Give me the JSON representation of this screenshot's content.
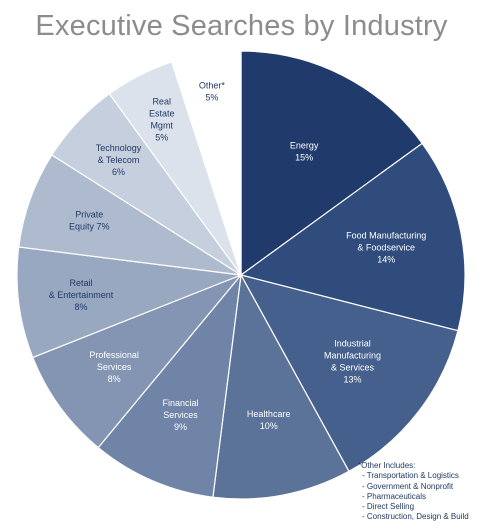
{
  "chart_data": {
    "type": "pie",
    "title": "Executive Searches by Industry",
    "slices": [
      {
        "label": [
          "Energy"
        ],
        "pct_label": "15%",
        "value": 15,
        "color": "#1f3a6b",
        "text_color": "#ffffff"
      },
      {
        "label": [
          "Food Manufacturing",
          "& Foodservice"
        ],
        "pct_label": "14%",
        "value": 14,
        "color": "#2f4c7c",
        "text_color": "#ffffff"
      },
      {
        "label": [
          "Industrial",
          "Manufacturing",
          "& Services"
        ],
        "pct_label": "13%",
        "value": 13,
        "color": "#45608c",
        "text_color": "#ffffff"
      },
      {
        "label": [
          "Healthcare"
        ],
        "pct_label": "10%",
        "value": 10,
        "color": "#5c7399",
        "text_color": "#ffffff"
      },
      {
        "label": [
          "Financial",
          "Services"
        ],
        "pct_label": "9%",
        "value": 9,
        "color": "#6f84a6",
        "text_color": "#ffffff"
      },
      {
        "label": [
          "Professional",
          "Services"
        ],
        "pct_label": "8%",
        "value": 8,
        "color": "#8395b3",
        "text_color": "#ffffff"
      },
      {
        "label": [
          "Retail",
          "& Entertainment"
        ],
        "pct_label": "8%",
        "value": 8,
        "color": "#98a8c1",
        "text_color": "#1f3a66"
      },
      {
        "label": [
          "Private",
          "Equity 7%"
        ],
        "pct_label": "",
        "value": 7,
        "color": "#aebbcf",
        "text_color": "#1f3a66"
      },
      {
        "label": [
          "Technology",
          "& Telecom"
        ],
        "pct_label": "6%",
        "value": 6,
        "color": "#c6cfdd",
        "text_color": "#1f3a66"
      },
      {
        "label": [
          "Real",
          "Estate",
          "Mgmt"
        ],
        "pct_label": "5%",
        "value": 5,
        "color": "#dce2ec",
        "text_color": "#1f3a66"
      },
      {
        "label": [
          "Other*"
        ],
        "pct_label": "5%",
        "value": 5,
        "color": "#ffffff",
        "text_color": "#1f3a66"
      }
    ]
  },
  "footnote": {
    "heading": "*Other Includes:",
    "items": [
      "- Transportation & Logistics",
      "- Government & Nonprofit",
      "- Pharmaceuticals",
      "- Direct Selling",
      "- Construction, Design & Build"
    ]
  }
}
